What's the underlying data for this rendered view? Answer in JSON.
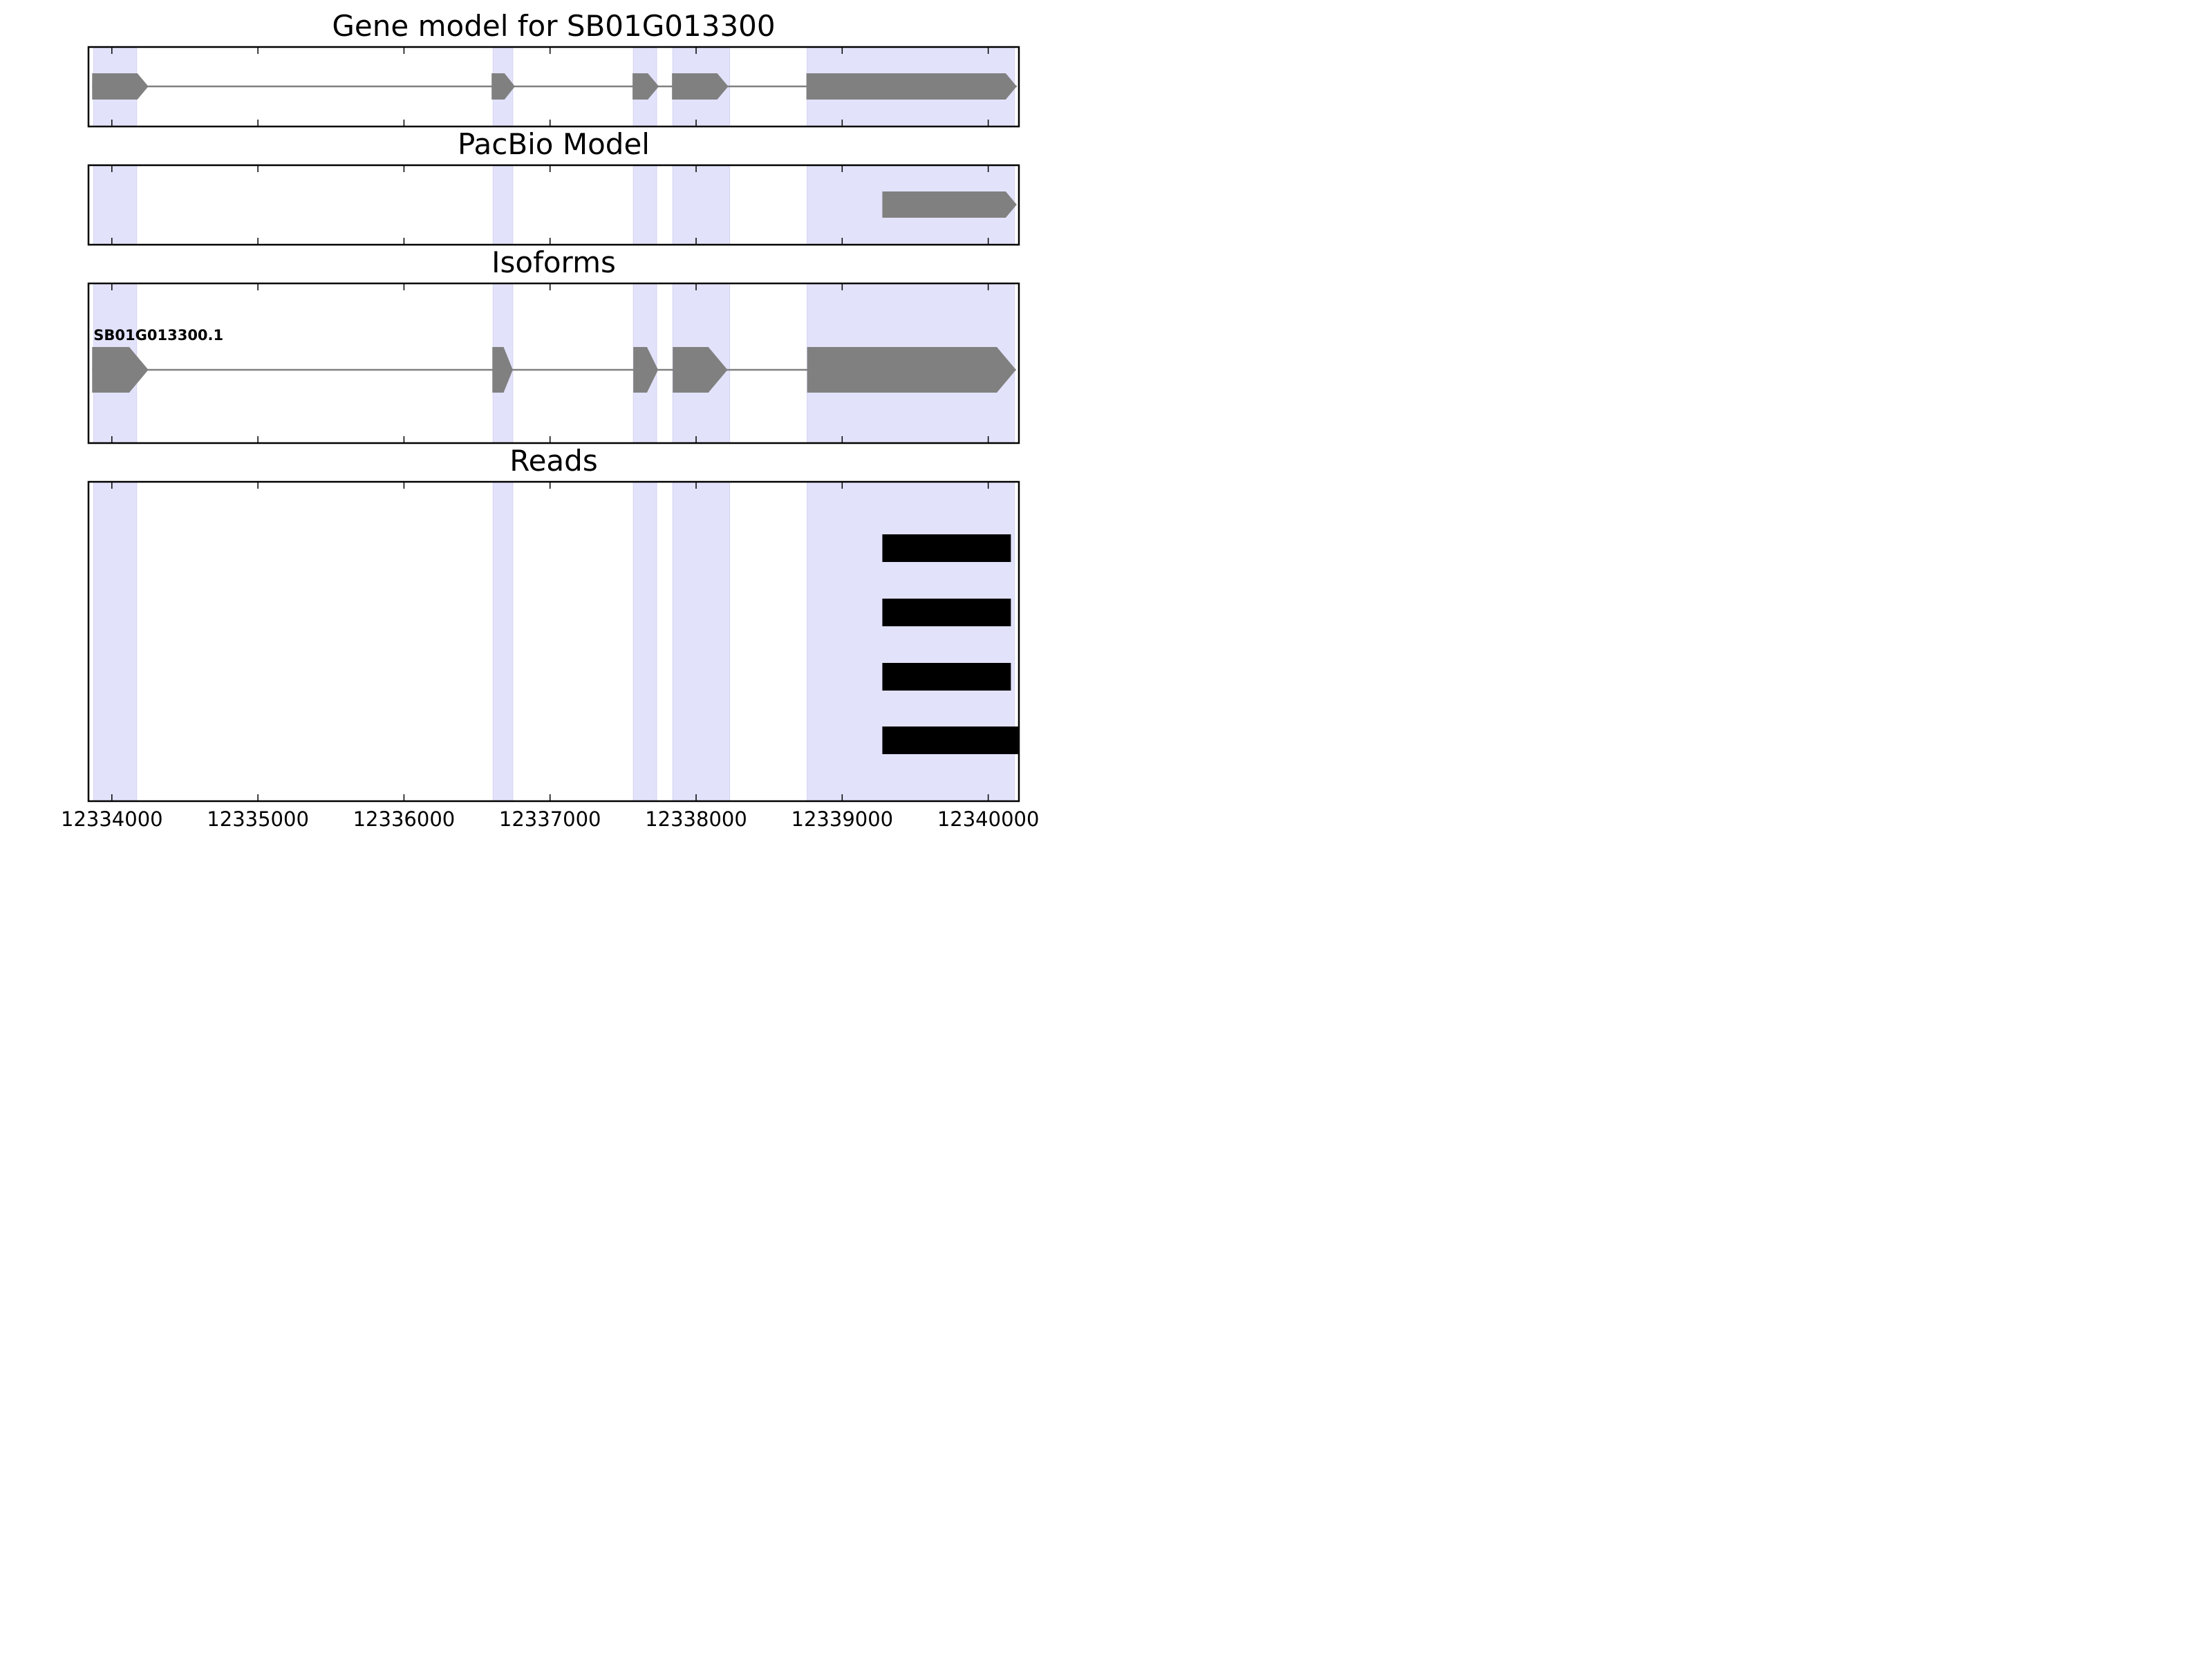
{
  "chart_data": {
    "type": "gene-track",
    "xlim": [
      12333840,
      12340210
    ],
    "x_ticks": [
      12334000,
      12335000,
      12336000,
      12337000,
      12338000,
      12339000,
      12340000
    ],
    "x_tick_labels": [
      "12334000",
      "12335000",
      "12336000",
      "12337000",
      "12338000",
      "12339000",
      "12340000"
    ],
    "exon_highlights": [
      [
        12333875,
        12334170
      ],
      [
        12336610,
        12336745
      ],
      [
        12337570,
        12337730
      ],
      [
        12337840,
        12338230
      ],
      [
        12338760,
        12340180
      ]
    ],
    "highlight_color": "#e2e2fb",
    "feature_color": "#808080",
    "read_color": "#000000",
    "panels": [
      {
        "title": "Gene model for SB01G013300",
        "kind": "gene",
        "exons": [
          [
            12333865,
            12334250
          ],
          [
            12336600,
            12336760
          ],
          [
            12337565,
            12337745
          ],
          [
            12337835,
            12338220
          ],
          [
            12338755,
            12340195
          ]
        ]
      },
      {
        "title": "PacBio Model",
        "kind": "gene",
        "exons": [
          [
            12339275,
            12340195
          ]
        ]
      },
      {
        "title": "Isoforms",
        "kind": "isoform",
        "isoforms": [
          {
            "name": "SB01G013300.1",
            "exons": [
              [
                12333865,
                12334250
              ],
              [
                12336605,
                12336745
              ],
              [
                12337570,
                12337740
              ],
              [
                12337840,
                12338215
              ],
              [
                12338760,
                12340190
              ]
            ]
          }
        ]
      },
      {
        "title": "Reads",
        "kind": "reads",
        "reads": [
          [
            12339275,
            12340155
          ],
          [
            12339275,
            12340155
          ],
          [
            12339275,
            12340155
          ],
          [
            12339275,
            12340205
          ]
        ]
      }
    ]
  }
}
